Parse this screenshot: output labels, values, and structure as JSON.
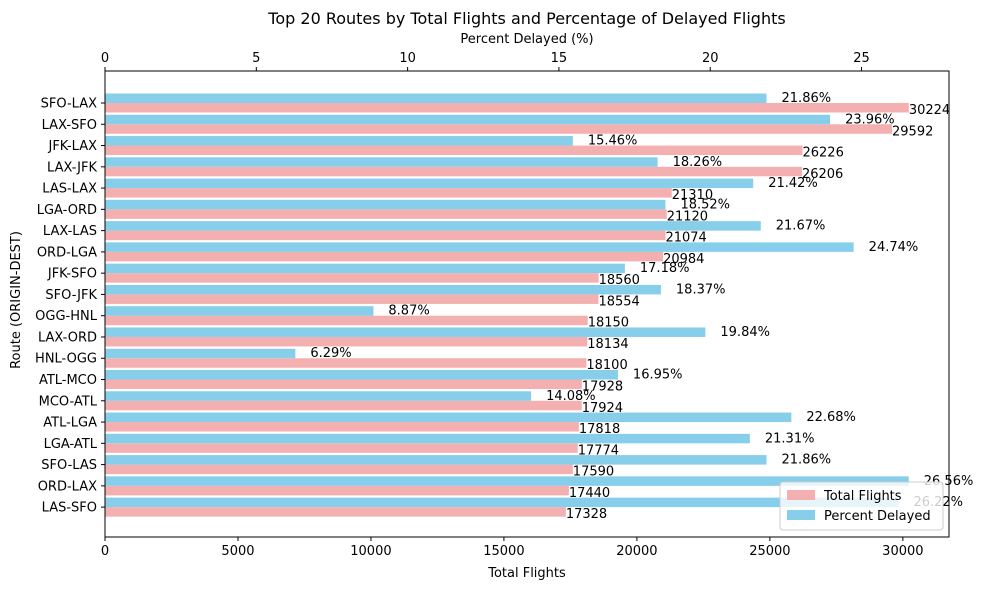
{
  "chart_data": {
    "type": "bar",
    "orientation": "horizontal",
    "title": "Top 20 Routes by Total Flights and Percentage of Delayed Flights",
    "ylabel": "Route (ORIGIN-DEST)",
    "xlabel_bottom": "Total Flights",
    "xlabel_top": "Percent Delayed (%)",
    "xlim_bottom": [
      0,
      31735
    ],
    "xlim_top": [
      0,
      27.89
    ],
    "xticks_bottom": [
      0,
      5000,
      10000,
      15000,
      20000,
      25000,
      30000
    ],
    "xticks_top": [
      0,
      5,
      10,
      15,
      20,
      25
    ],
    "legend_position": "lower-right",
    "grid": false,
    "categories": [
      "SFO-LAX",
      "LAX-SFO",
      "JFK-LAX",
      "LAX-JFK",
      "LAS-LAX",
      "LGA-ORD",
      "LAX-LAS",
      "ORD-LGA",
      "JFK-SFO",
      "SFO-JFK",
      "OGG-HNL",
      "LAX-ORD",
      "HNL-OGG",
      "ATL-MCO",
      "MCO-ATL",
      "ATL-LGA",
      "LGA-ATL",
      "SFO-LAS",
      "ORD-LAX",
      "LAS-SFO"
    ],
    "series": [
      {
        "name": "Total Flights",
        "axis": "bottom",
        "color": "#f4b0b0",
        "values": [
          30224,
          29592,
          26226,
          26206,
          21310,
          21120,
          21074,
          20984,
          18560,
          18554,
          18150,
          18134,
          18100,
          17928,
          17924,
          17818,
          17774,
          17590,
          17440,
          17328
        ],
        "labels": [
          "30224",
          "29592",
          "26226",
          "26206",
          "21310",
          "21120",
          "21074",
          "20984",
          "18560",
          "18554",
          "18150",
          "18134",
          "18100",
          "17928",
          "17924",
          "17818",
          "17774",
          "17590",
          "17440",
          "17328"
        ]
      },
      {
        "name": "Percent Delayed",
        "axis": "top",
        "color": "#87ceeb",
        "values": [
          21.86,
          23.96,
          15.46,
          18.26,
          21.42,
          18.52,
          21.67,
          24.74,
          17.18,
          18.37,
          8.87,
          19.84,
          6.29,
          16.95,
          14.08,
          22.68,
          21.31,
          21.86,
          26.56,
          26.22
        ],
        "labels": [
          "21.86%",
          "23.96%",
          "15.46%",
          "18.26%",
          "21.42%",
          "18.52%",
          "21.67%",
          "24.74%",
          "17.18%",
          "18.37%",
          "8.87%",
          "19.84%",
          "6.29%",
          "16.95%",
          "14.08%",
          "22.68%",
          "21.31%",
          "21.86%",
          "26.56%",
          "26.22%"
        ]
      }
    ]
  }
}
